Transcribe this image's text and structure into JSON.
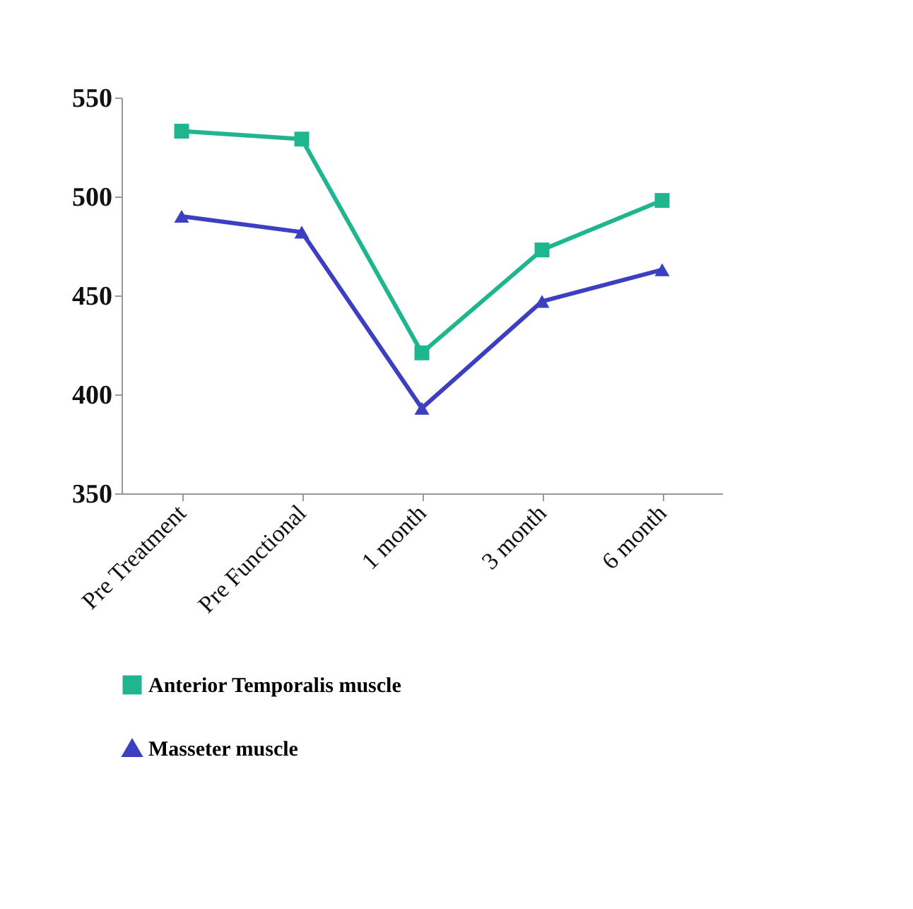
{
  "chart_data": {
    "type": "line",
    "categories": [
      "Pre Treatment",
      "Pre Functional",
      "1 month",
      "3 month",
      "6 month"
    ],
    "series": [
      {
        "name": "Anterior Temporalis muscle",
        "color": "#1fb58f",
        "marker": "square",
        "values": [
          533,
          529,
          421,
          473,
          498
        ]
      },
      {
        "name": "Masseter muscle",
        "color": "#3b3fc0",
        "marker": "triangle",
        "values": [
          490,
          482,
          393,
          447,
          463
        ]
      }
    ],
    "ylim": [
      350,
      550
    ],
    "yticks": [
      350,
      400,
      450,
      500,
      550
    ],
    "grid": false,
    "legend": "bottom",
    "line_style": "solid"
  }
}
